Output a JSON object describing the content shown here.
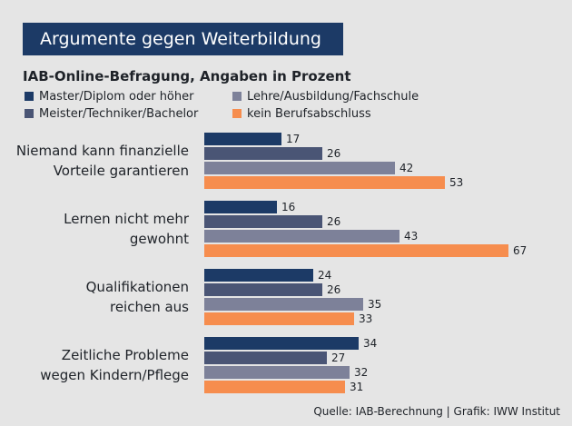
{
  "chart_data": {
    "type": "bar",
    "orientation": "horizontal",
    "title": "Argumente gegen Weiterbildung",
    "subtitle": "IAB-Online-Befragung, Angaben in Prozent",
    "categories": [
      [
        "Niemand kann finanzielle",
        "Vorteile garantieren"
      ],
      [
        "Lernen nicht mehr",
        "gewohnt"
      ],
      [
        "Qualifikationen",
        "reichen aus"
      ],
      [
        "Zeitliche Probleme",
        "wegen Kindern/Pflege"
      ]
    ],
    "series": [
      {
        "name": "Master/Diplom oder höher",
        "color": "#1c3a66",
        "values": [
          17,
          16,
          24,
          34
        ]
      },
      {
        "name": "Meister/Techniker/Bachelor",
        "color": "#4a5575",
        "values": [
          26,
          26,
          26,
          27
        ]
      },
      {
        "name": "Lehre/Ausbildung/Fachschule",
        "color": "#7d8199",
        "values": [
          42,
          43,
          35,
          32
        ]
      },
      {
        "name": "kein Berufsabschluss",
        "color": "#f68d4e",
        "values": [
          53,
          67,
          33,
          31
        ]
      }
    ],
    "source": "Quelle: IAB-Berechnung | Grafik: IWW Institut"
  }
}
